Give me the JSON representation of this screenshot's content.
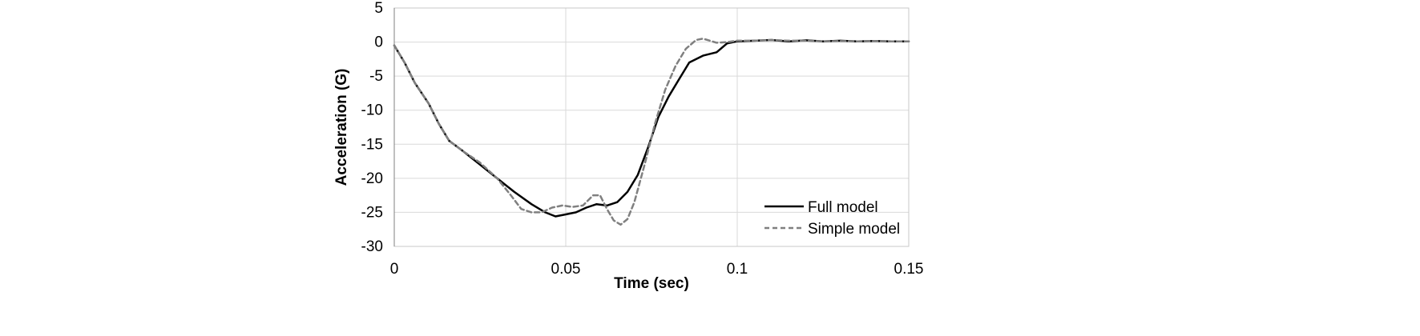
{
  "chart_data": {
    "type": "line",
    "title": "",
    "xlabel": "Time (sec)",
    "ylabel": "Acceleration (G)",
    "xlim": [
      0,
      0.15
    ],
    "ylim": [
      -30,
      5
    ],
    "xticks": [
      0,
      0.05,
      0.1,
      0.15
    ],
    "xtick_labels": [
      "0",
      "0.05",
      "0.1",
      "0.15"
    ],
    "yticks": [
      5,
      0,
      -5,
      -10,
      -15,
      -20,
      -25,
      -30
    ],
    "ytick_labels": [
      "5",
      "0",
      "-5",
      "-10",
      "-15",
      "-20",
      "-25",
      "-30"
    ],
    "grid": true,
    "legend_position": "bottom-right",
    "series": [
      {
        "name": "Full model",
        "color": "#000000",
        "style": "solid",
        "x": [
          0,
          0.003,
          0.006,
          0.01,
          0.013,
          0.016,
          0.02,
          0.025,
          0.03,
          0.035,
          0.04,
          0.044,
          0.047,
          0.05,
          0.053,
          0.056,
          0.059,
          0.062,
          0.065,
          0.068,
          0.071,
          0.074,
          0.077,
          0.08,
          0.083,
          0.086,
          0.09,
          0.094,
          0.097,
          0.1,
          0.105,
          0.11,
          0.115,
          0.12,
          0.125,
          0.13,
          0.135,
          0.14,
          0.145,
          0.15
        ],
        "y": [
          -0.5,
          -3,
          -6,
          -9,
          -12,
          -14.5,
          -16,
          -18,
          -20,
          -22,
          -23.8,
          -25,
          -25.6,
          -25.3,
          -25,
          -24.3,
          -23.8,
          -24,
          -23.5,
          -22,
          -19.5,
          -15.5,
          -11,
          -8,
          -5.5,
          -3,
          -2,
          -1.5,
          -0.2,
          0.1,
          0.2,
          0.3,
          0.1,
          0.25,
          0.1,
          0.2,
          0.1,
          0.15,
          0.1,
          0.1
        ]
      },
      {
        "name": "Simple model",
        "color": "#808080",
        "style": "dashed",
        "x": [
          0,
          0.003,
          0.006,
          0.01,
          0.013,
          0.016,
          0.02,
          0.025,
          0.03,
          0.034,
          0.037,
          0.04,
          0.043,
          0.046,
          0.049,
          0.052,
          0.055,
          0.058,
          0.06,
          0.062,
          0.064,
          0.066,
          0.068,
          0.07,
          0.073,
          0.076,
          0.079,
          0.082,
          0.085,
          0.088,
          0.09,
          0.092,
          0.094,
          0.097,
          0.1,
          0.105,
          0.11,
          0.115,
          0.12,
          0.125,
          0.13,
          0.135,
          0.14,
          0.145,
          0.15
        ],
        "y": [
          -0.5,
          -3,
          -6,
          -9,
          -12,
          -14.5,
          -16,
          -17.7,
          -20,
          -22.5,
          -24.5,
          -25,
          -25,
          -24.3,
          -24,
          -24.2,
          -24,
          -22.5,
          -22.5,
          -24.5,
          -26.2,
          -26.8,
          -26,
          -23.5,
          -18,
          -12,
          -7,
          -3.5,
          -1,
          0.3,
          0.5,
          0.2,
          -0.1,
          0,
          0.2,
          0.2,
          0.3,
          0.2,
          0.2,
          0.1,
          0.15,
          0.1,
          0.15,
          0.1,
          0.1
        ]
      }
    ]
  }
}
